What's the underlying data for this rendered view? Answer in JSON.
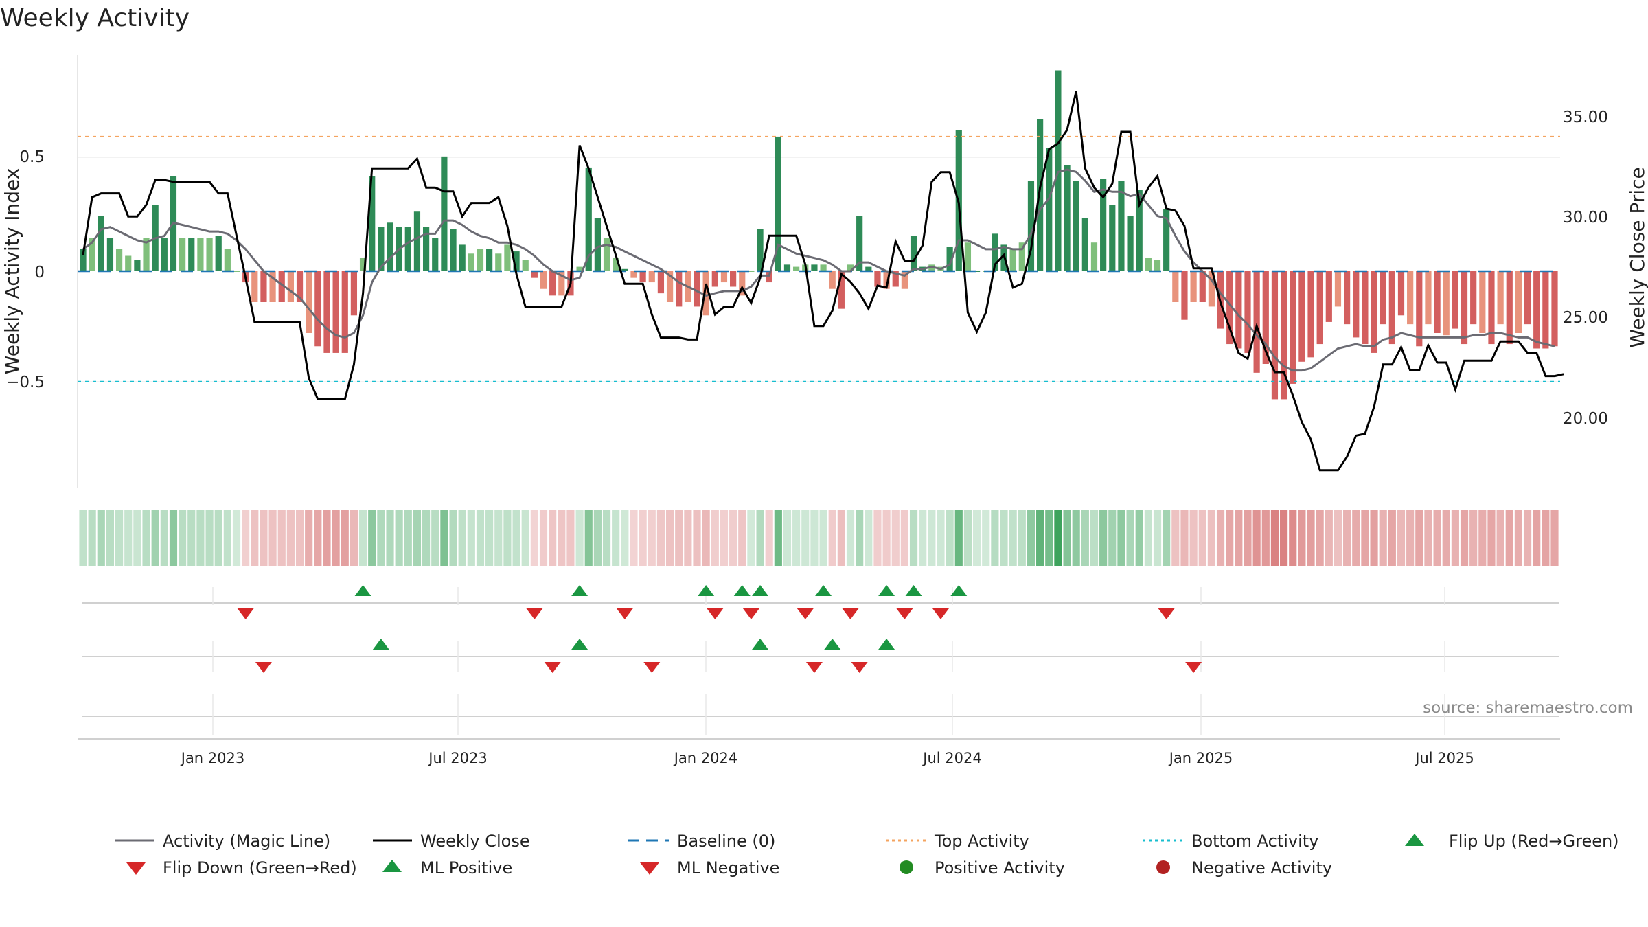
{
  "chart_data": {
    "type": "bar",
    "title": "Weekly Activity",
    "ylabel_left": "Weekly Activity Index",
    "ylabel_right": "Weekly Close Price",
    "source": "source: sharemaestro.com",
    "left_axis": {
      "ylim": [
        -0.98,
        0.98
      ],
      "ticks": [
        0.5,
        0,
        -0.5
      ],
      "tick_labels": [
        "0.5",
        "0",
        "−0.5"
      ]
    },
    "right_axis": {
      "ylim": [
        16.4,
        38.9
      ],
      "ticks": [
        35,
        30,
        25,
        20
      ],
      "tick_labels": [
        "35.00",
        "30.00",
        "25.00",
        "20.00"
      ]
    },
    "x_ticks": [
      "Jan 2023",
      "Jul 2023",
      "Jan 2024",
      "Jul 2024",
      "Jan 2025",
      "Jul 2025"
    ],
    "top_activity": 0.61,
    "bottom_activity": -0.5,
    "baseline": 0,
    "activity": [
      0.1,
      0.15,
      0.25,
      0.15,
      0.1,
      0.07,
      0.05,
      0.15,
      0.3,
      0.15,
      0.43,
      0.15,
      0.15,
      0.15,
      0.15,
      0.16,
      0.1,
      0.0,
      -0.05,
      -0.14,
      -0.14,
      -0.14,
      -0.14,
      -0.14,
      -0.14,
      -0.28,
      -0.34,
      -0.37,
      -0.37,
      -0.37,
      -0.2,
      0.06,
      0.43,
      0.2,
      0.22,
      0.2,
      0.2,
      0.27,
      0.2,
      0.15,
      0.52,
      0.19,
      0.12,
      0.08,
      0.1,
      0.1,
      0.08,
      0.12,
      0.09,
      0.05,
      -0.03,
      -0.08,
      -0.11,
      -0.11,
      -0.11,
      0.02,
      0.47,
      0.24,
      0.15,
      0.06,
      0.01,
      -0.03,
      -0.05,
      -0.05,
      -0.1,
      -0.14,
      -0.16,
      -0.14,
      -0.16,
      -0.2,
      -0.07,
      -0.05,
      -0.07,
      -0.11,
      0.0,
      0.19,
      -0.05,
      0.61,
      0.03,
      0.02,
      0.03,
      0.03,
      0.03,
      -0.08,
      -0.17,
      0.03,
      0.25,
      0.02,
      -0.07,
      -0.08,
      -0.07,
      -0.08,
      0.16,
      0.02,
      0.03,
      0.02,
      0.11,
      0.64,
      0.13,
      0.0,
      0.0,
      0.17,
      0.12,
      0.1,
      0.13,
      0.41,
      0.69,
      0.56,
      0.91,
      0.48,
      0.41,
      0.24,
      0.13,
      0.42,
      0.3,
      0.41,
      0.25,
      0.37,
      0.06,
      0.05,
      0.28,
      -0.14,
      -0.22,
      -0.14,
      -0.14,
      -0.16,
      -0.26,
      -0.33,
      -0.35,
      -0.37,
      -0.46,
      -0.42,
      -0.58,
      -0.58,
      -0.51,
      -0.41,
      -0.39,
      -0.33,
      -0.23,
      -0.16,
      -0.24,
      -0.3,
      -0.33,
      -0.37,
      -0.24,
      -0.33,
      -0.2,
      -0.24,
      -0.34,
      -0.24,
      -0.28,
      -0.29,
      -0.26,
      -0.33,
      -0.24,
      -0.28,
      -0.33,
      -0.24,
      -0.33,
      -0.28,
      -0.24,
      -0.35,
      -0.35,
      -0.34
    ],
    "magic_line": [
      0.1,
      0.13,
      0.19,
      0.2,
      0.18,
      0.16,
      0.14,
      0.13,
      0.15,
      0.16,
      0.22,
      0.21,
      0.2,
      0.19,
      0.18,
      0.18,
      0.17,
      0.14,
      0.1,
      0.05,
      0.0,
      -0.03,
      -0.06,
      -0.09,
      -0.12,
      -0.17,
      -0.22,
      -0.26,
      -0.29,
      -0.3,
      -0.28,
      -0.2,
      -0.05,
      0.02,
      0.06,
      0.1,
      0.13,
      0.15,
      0.17,
      0.17,
      0.23,
      0.23,
      0.21,
      0.18,
      0.16,
      0.15,
      0.13,
      0.13,
      0.12,
      0.1,
      0.07,
      0.03,
      0.0,
      -0.02,
      -0.04,
      -0.03,
      0.07,
      0.11,
      0.12,
      0.11,
      0.09,
      0.07,
      0.05,
      0.03,
      0.01,
      -0.02,
      -0.05,
      -0.07,
      -0.09,
      -0.11,
      -0.1,
      -0.09,
      -0.09,
      -0.09,
      -0.07,
      -0.02,
      -0.02,
      0.12,
      0.1,
      0.08,
      0.07,
      0.06,
      0.05,
      0.03,
      0.0,
      0.0,
      0.04,
      0.04,
      0.02,
      0.0,
      -0.01,
      -0.02,
      0.01,
      0.01,
      0.02,
      0.01,
      0.03,
      0.14,
      0.14,
      0.12,
      0.1,
      0.1,
      0.11,
      0.1,
      0.1,
      0.17,
      0.28,
      0.33,
      0.45,
      0.46,
      0.45,
      0.41,
      0.36,
      0.37,
      0.36,
      0.36,
      0.34,
      0.35,
      0.3,
      0.25,
      0.24,
      0.16,
      0.09,
      0.04,
      0.0,
      -0.04,
      -0.1,
      -0.15,
      -0.2,
      -0.24,
      -0.29,
      -0.33,
      -0.39,
      -0.43,
      -0.45,
      -0.45,
      -0.44,
      -0.41,
      -0.38,
      -0.35,
      -0.34,
      -0.33,
      -0.34,
      -0.34,
      -0.31,
      -0.3,
      -0.28,
      -0.29,
      -0.3,
      -0.3,
      -0.3,
      -0.3,
      -0.3,
      -0.3,
      -0.29,
      -0.29,
      -0.28,
      -0.28,
      -0.29,
      -0.3,
      -0.3,
      -0.32,
      -0.33,
      -0.34
    ],
    "weekly_close": [
      28.5,
      31.5,
      31.7,
      31.7,
      31.7,
      30.5,
      30.5,
      31.1,
      32.4,
      32.4,
      32.3,
      32.3,
      32.3,
      32.3,
      32.3,
      31.7,
      31.7,
      29.5,
      27.3,
      25.0,
      25.0,
      25.0,
      25.0,
      25.0,
      25.0,
      22.1,
      21.0,
      21.0,
      21.0,
      21.0,
      22.8,
      26.5,
      33.0,
      33.0,
      33.0,
      33.0,
      33.0,
      33.5,
      32.0,
      32.0,
      31.8,
      31.8,
      30.5,
      31.2,
      31.2,
      31.2,
      31.5,
      30.0,
      27.5,
      25.8,
      25.8,
      25.8,
      25.8,
      25.8,
      27.0,
      34.2,
      33.0,
      31.5,
      30.0,
      28.5,
      27.0,
      27.0,
      27.0,
      25.4,
      24.2,
      24.2,
      24.2,
      24.1,
      24.1,
      27.0,
      25.4,
      25.8,
      25.8,
      26.8,
      26.0,
      27.3,
      29.5,
      29.5,
      29.5,
      29.5,
      28.0,
      24.8,
      24.8,
      25.6,
      27.5,
      27.1,
      26.5,
      25.7,
      26.9,
      26.8,
      29.2,
      28.2,
      28.2,
      29.0,
      32.3,
      32.8,
      32.8,
      31.2,
      25.5,
      24.5,
      25.5,
      28.0,
      28.5,
      26.8,
      27.0,
      28.8,
      32.0,
      34.0,
      34.3,
      35.0,
      37.0,
      33.0,
      32.0,
      31.5,
      32.2,
      34.9,
      34.9,
      31.1,
      32.0,
      32.6,
      30.9,
      30.8,
      30.0,
      27.8,
      27.8,
      27.8,
      26.0,
      24.7,
      23.4,
      23.1,
      24.8,
      23.5,
      22.4,
      22.4,
      21.2,
      19.8,
      18.9,
      17.3,
      17.3,
      17.3,
      18.0,
      19.1,
      19.2,
      20.6,
      22.8,
      22.8,
      23.7,
      22.5,
      22.5,
      23.8,
      22.9,
      22.9,
      21.5,
      23.0,
      23.0,
      23.0,
      23.0,
      24.0,
      24.0,
      24.0,
      23.4,
      23.4,
      22.2,
      22.2,
      22.3
    ],
    "flip_up_weeks": [
      31,
      55,
      69,
      73,
      75,
      82,
      89,
      92,
      97
    ],
    "flip_down_weeks": [
      18,
      50,
      60,
      70,
      74,
      80,
      85,
      91,
      95,
      120
    ],
    "ml_positive_weeks": [
      33,
      55,
      75,
      83,
      89
    ],
    "ml_negative_weeks": [
      20,
      52,
      63,
      81,
      86,
      123
    ],
    "legend": [
      "Activity (Magic Line)",
      "Weekly Close",
      "Baseline (0)",
      "Top Activity",
      "Bottom Activity",
      "Flip Up (Red→Green)",
      "Flip Down (Green→Red)",
      "ML Positive",
      "ML Negative",
      "Positive Activity",
      "Negative Activity"
    ],
    "colors": {
      "pos_strong": "#2e8b57",
      "pos_light": "#7fbf7b",
      "neg_strong": "#d35f5f",
      "neg_light": "#e8937c",
      "magic_line": "#6b6b73",
      "close": "#000000",
      "baseline": "#1f77b4",
      "top": "#f4a460",
      "bottom": "#17becf",
      "marker_green": "#1a9641",
      "marker_red": "#d62728",
      "dot_green": "#228b22",
      "dot_red": "#b22222"
    }
  }
}
